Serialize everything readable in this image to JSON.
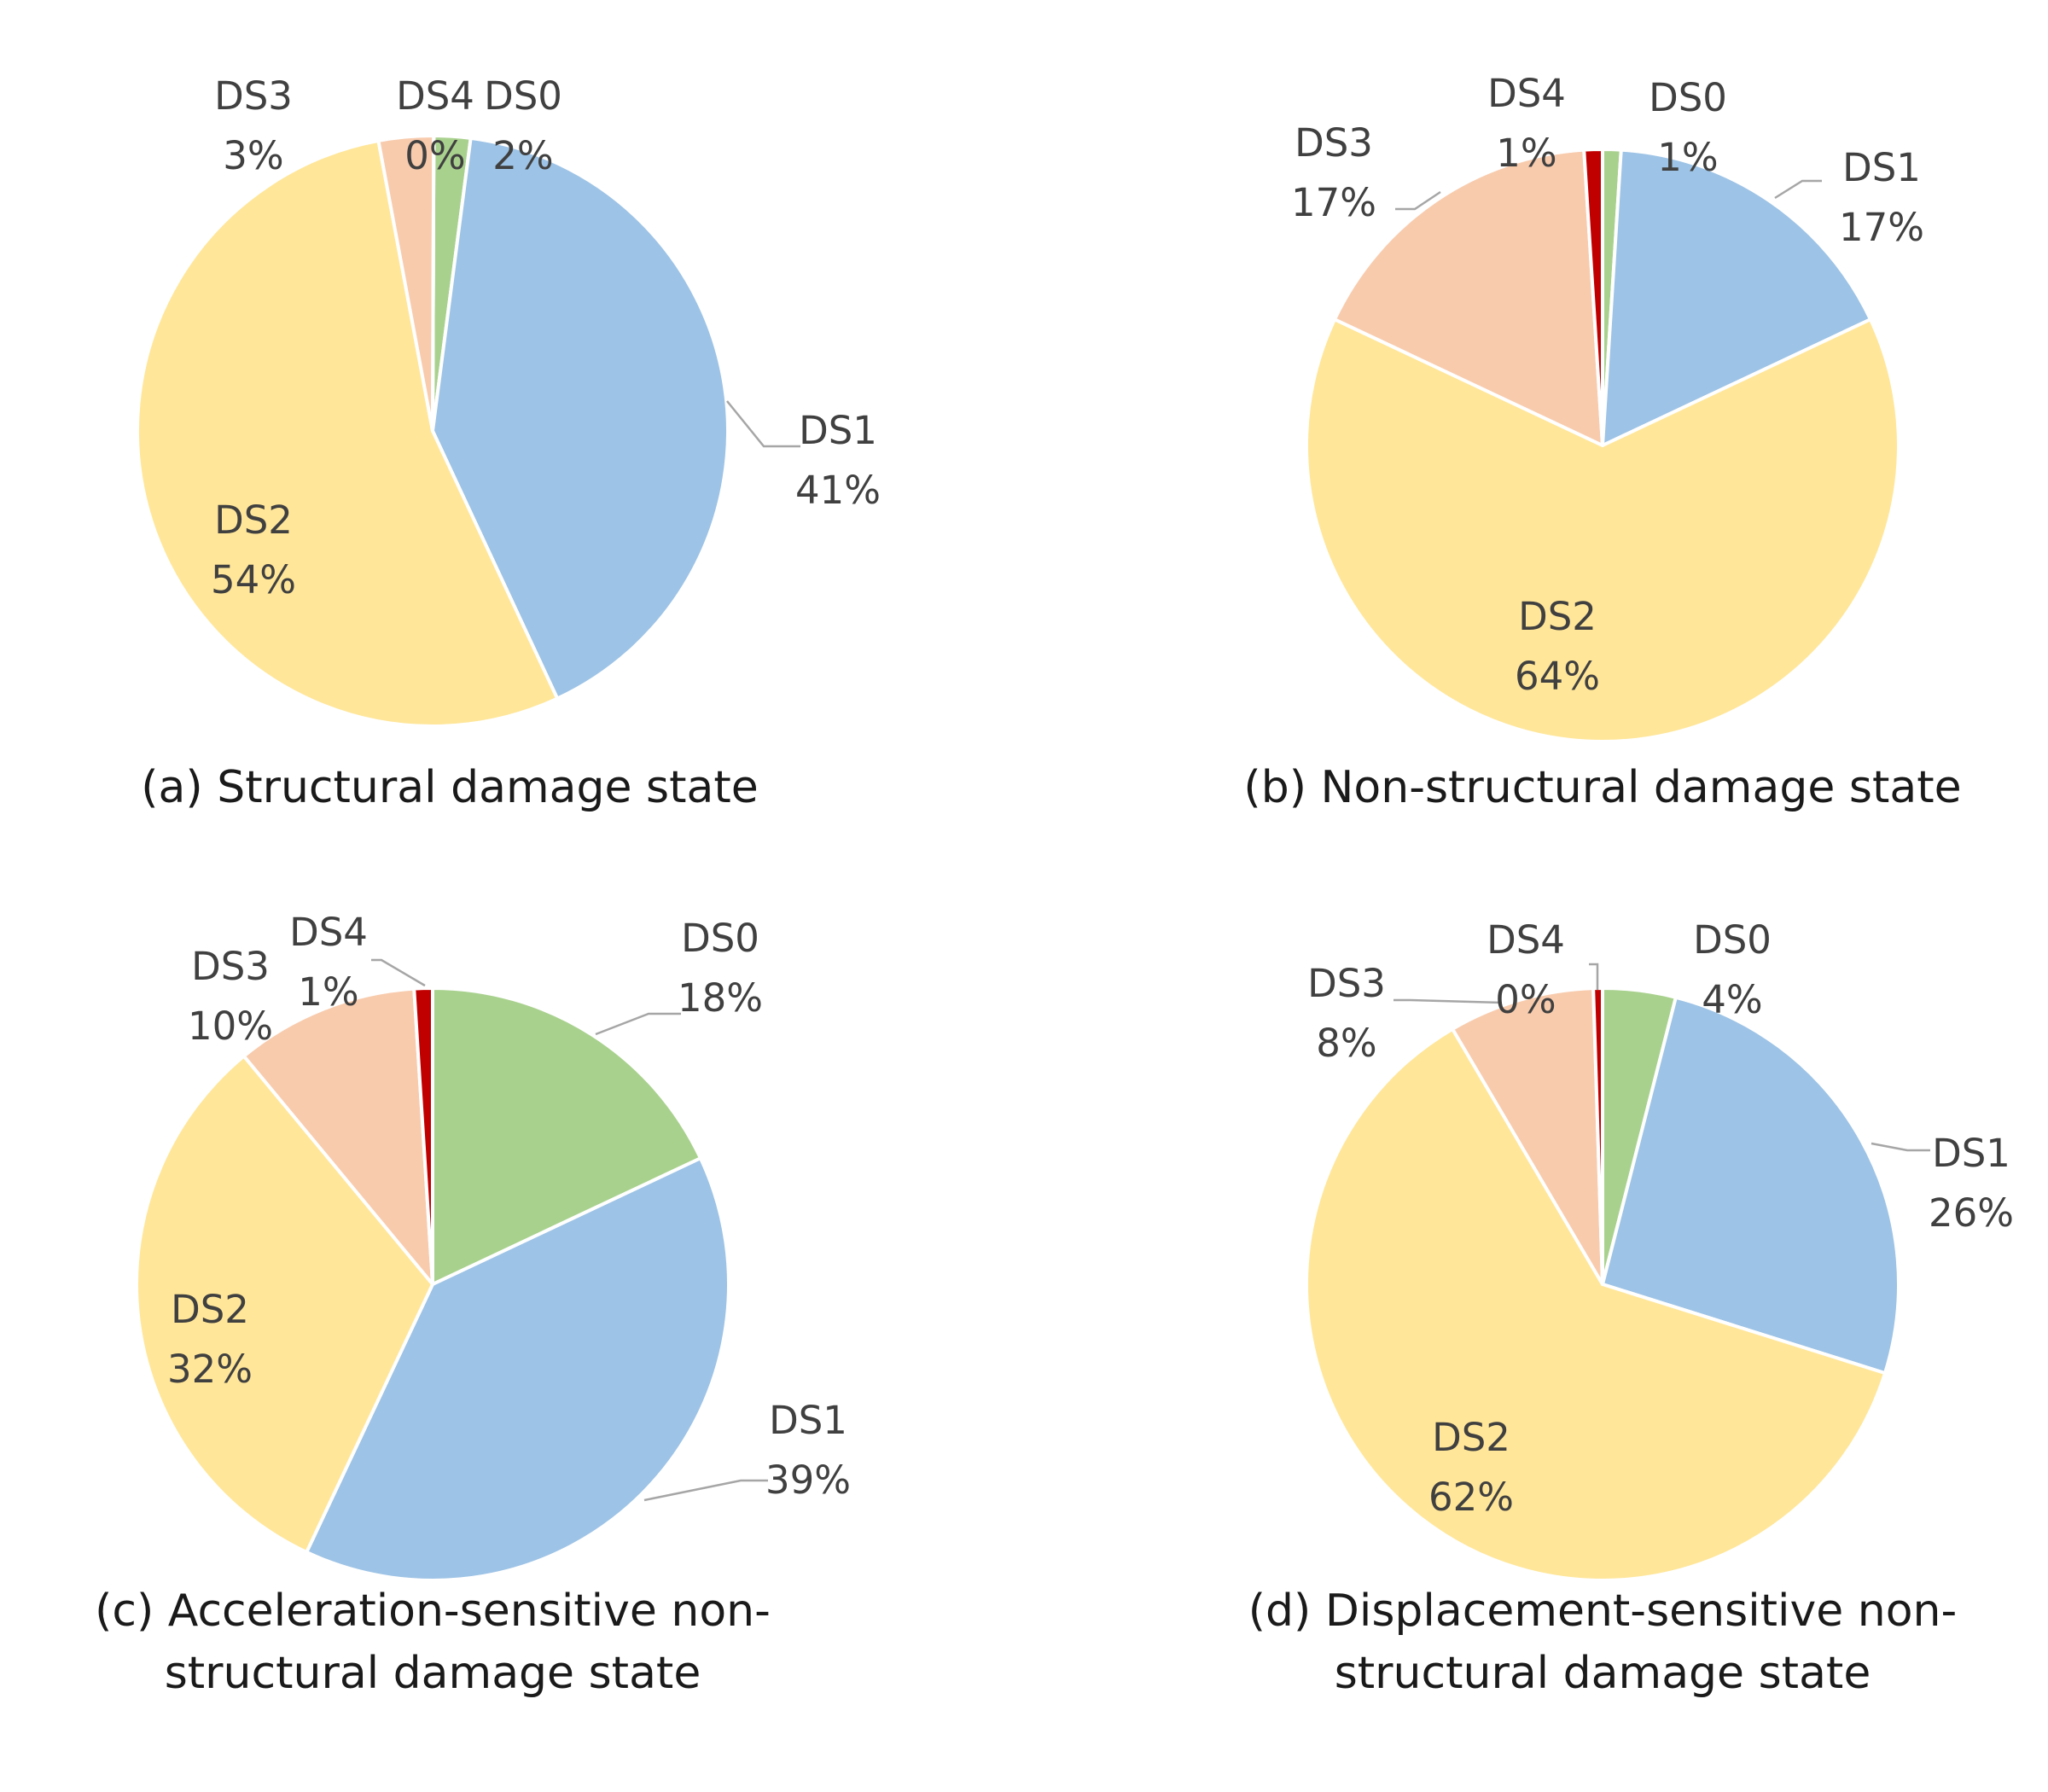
{
  "colors": {
    "DS0": "#a9d18e",
    "DS1": "#9dc3e6",
    "DS2": "#ffe699",
    "DS3": "#f8cbad",
    "DS4": "#c00000"
  },
  "chart_data": [
    {
      "type": "pie",
      "caption_lines": [
        "(a) Structural damage state"
      ],
      "categories": [
        "DS0",
        "DS1",
        "DS2",
        "DS3",
        "DS4"
      ],
      "values": [
        2,
        41,
        54,
        3,
        0
      ],
      "value_labels": [
        "2%",
        "41%",
        "54%",
        "3%",
        "0%"
      ],
      "start_value": 0.06
    },
    {
      "type": "pie",
      "caption_lines": [
        "(b) Non-structural damage state"
      ],
      "categories": [
        "DS0",
        "DS1",
        "DS2",
        "DS3",
        "DS4"
      ],
      "values": [
        1,
        17,
        64,
        17,
        1
      ],
      "value_labels": [
        "1%",
        "17%",
        "64%",
        "17%",
        "1%"
      ]
    },
    {
      "type": "pie",
      "caption_lines": [
        "(c) Acceleration-sensitive non-",
        "structural damage state"
      ],
      "categories": [
        "DS0",
        "DS1",
        "DS2",
        "DS3",
        "DS4"
      ],
      "values": [
        18,
        39,
        32,
        10,
        1
      ],
      "value_labels": [
        "18%",
        "39%",
        "32%",
        "10%",
        "1%"
      ]
    },
    {
      "type": "pie",
      "caption_lines": [
        "(d) Displacement-sensitive non-",
        "structural damage state"
      ],
      "categories": [
        "DS0",
        "DS1",
        "DS2",
        "DS3",
        "DS4"
      ],
      "values": [
        4,
        26,
        62,
        8,
        0.5
      ],
      "value_labels": [
        "4%",
        "26%",
        "62%",
        "8%",
        "0%"
      ]
    }
  ]
}
